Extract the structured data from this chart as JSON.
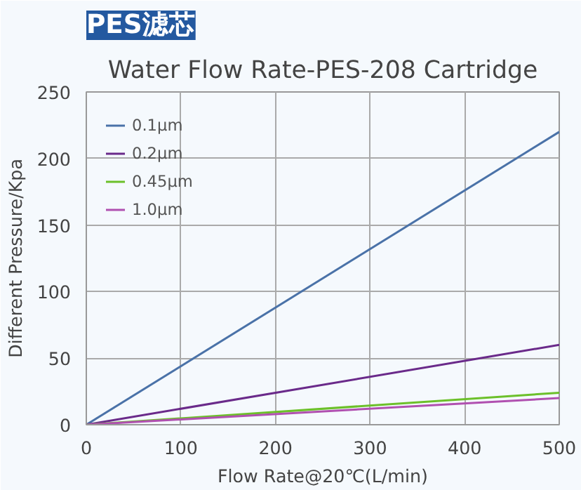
{
  "chart_data": {
    "type": "line",
    "title": "PES滤芯",
    "subtitle": "Water Flow Rate-PES-208 Cartridge",
    "xlabel": "Flow Rate@20℃(L/min)",
    "ylabel": "Different Pressure/Kpa",
    "x": [
      0,
      500
    ],
    "series": [
      {
        "name": "0.1μm",
        "color": "#4a72a8",
        "values": [
          0,
          220
        ]
      },
      {
        "name": "0.2μm",
        "color": "#6a2a8a",
        "values": [
          0,
          60
        ]
      },
      {
        "name": "0.45μm",
        "color": "#6cc02a",
        "values": [
          0,
          24
        ]
      },
      {
        "name": "1.0μm",
        "color": "#b050b0",
        "values": [
          0,
          20
        ]
      }
    ],
    "xlim": [
      0,
      500
    ],
    "ylim": [
      0,
      250
    ],
    "xticks": [
      0,
      100,
      200,
      300,
      400,
      500
    ],
    "yticks": [
      0,
      50,
      100,
      150,
      200,
      250
    ],
    "grid": true,
    "legend": "top left",
    "marker": "none",
    "line_style": "solid"
  }
}
